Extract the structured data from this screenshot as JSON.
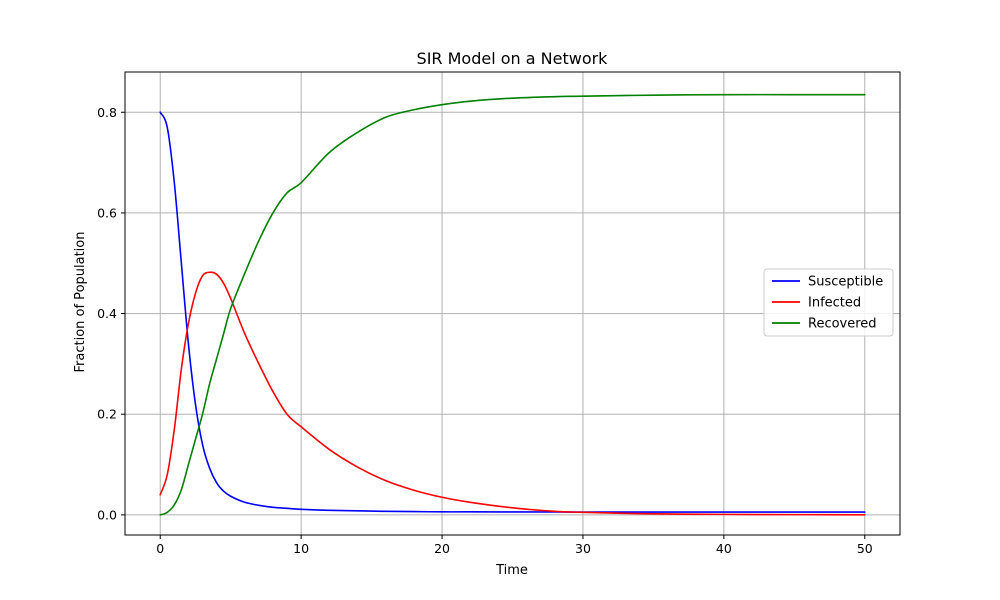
{
  "chart_data": {
    "type": "line",
    "title": "SIR Model on a Network",
    "xlabel": "Time",
    "ylabel": "Fraction of Population",
    "xlim": [
      -2.5,
      52.5
    ],
    "ylim": [
      -0.04,
      0.88
    ],
    "xticks": [
      0,
      10,
      20,
      30,
      40,
      50
    ],
    "xtick_labels": [
      "0",
      "10",
      "20",
      "30",
      "40",
      "50"
    ],
    "yticks": [
      0.0,
      0.2,
      0.4,
      0.6,
      0.8
    ],
    "ytick_labels": [
      "0.0",
      "0.2",
      "0.4",
      "0.6",
      "0.8"
    ],
    "grid": true,
    "legend_position": "center-right",
    "x": [
      0,
      0.5,
      1,
      1.5,
      2,
      2.5,
      3,
      3.5,
      4,
      4.5,
      5,
      6,
      7,
      8,
      9,
      10,
      12,
      14,
      16,
      18,
      20,
      22,
      25,
      28,
      30,
      35,
      40,
      45,
      50
    ],
    "series": [
      {
        "name": "Susceptible",
        "color": "#0000ff",
        "values": [
          0.8,
          0.77,
          0.66,
          0.5,
          0.34,
          0.22,
          0.14,
          0.093,
          0.064,
          0.047,
          0.037,
          0.025,
          0.019,
          0.015,
          0.013,
          0.011,
          0.009,
          0.008,
          0.007,
          0.0065,
          0.006,
          0.006,
          0.0058,
          0.0057,
          0.0056,
          0.0055,
          0.0055,
          0.0055,
          0.0055
        ]
      },
      {
        "name": "Infected",
        "color": "#ff0000",
        "values": [
          0.04,
          0.08,
          0.17,
          0.29,
          0.38,
          0.44,
          0.475,
          0.482,
          0.478,
          0.46,
          0.43,
          0.36,
          0.3,
          0.245,
          0.2,
          0.175,
          0.13,
          0.095,
          0.068,
          0.049,
          0.035,
          0.025,
          0.014,
          0.007,
          0.005,
          0.002,
          0.001,
          0.0005,
          0.0002
        ]
      },
      {
        "name": "Recovered",
        "color": "#008000",
        "values": [
          0.0,
          0.005,
          0.02,
          0.05,
          0.1,
          0.15,
          0.2,
          0.26,
          0.31,
          0.36,
          0.41,
          0.48,
          0.545,
          0.6,
          0.64,
          0.66,
          0.72,
          0.76,
          0.79,
          0.805,
          0.815,
          0.822,
          0.828,
          0.831,
          0.832,
          0.834,
          0.835,
          0.835,
          0.835
        ]
      }
    ]
  }
}
